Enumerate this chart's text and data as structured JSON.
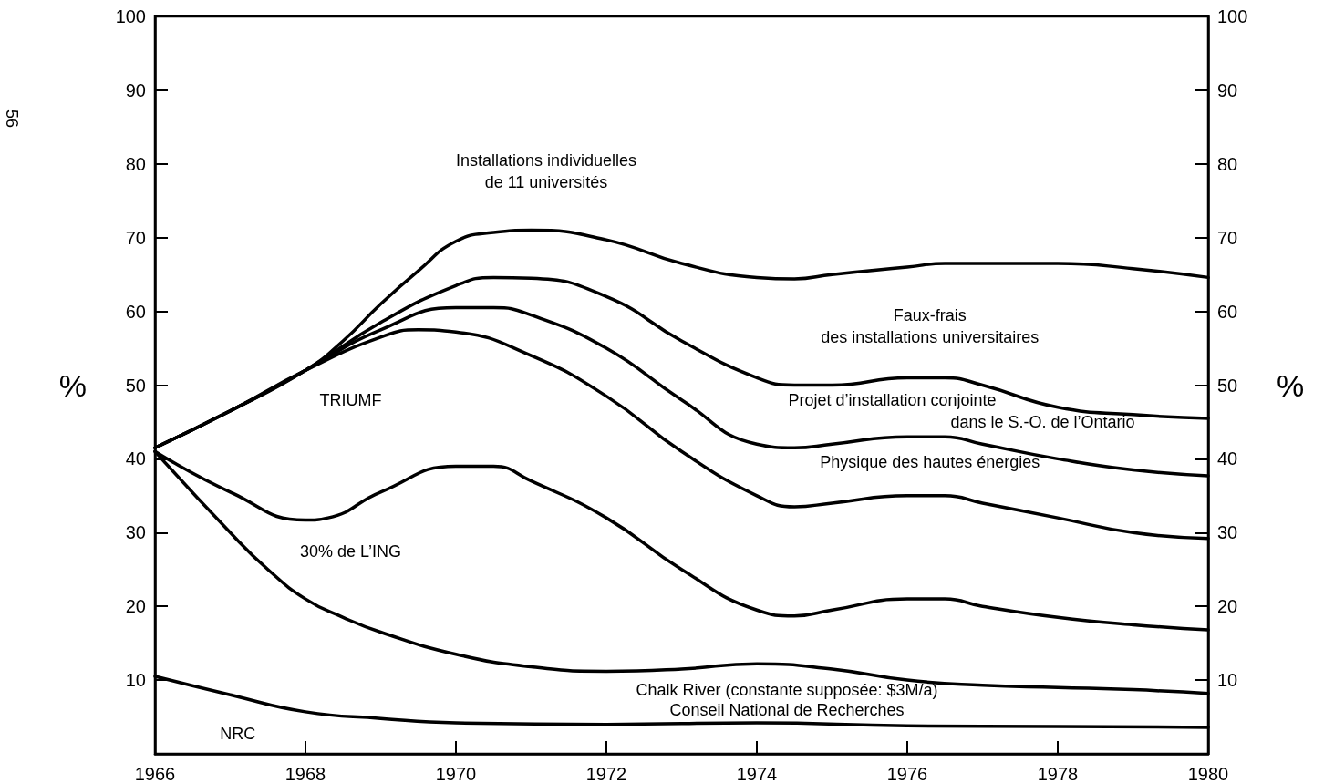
{
  "chart_data": {
    "type": "line",
    "ylabel": "%",
    "y2label": "%",
    "xlim": [
      1966,
      1980
    ],
    "xticks": [
      1966,
      1968,
      1970,
      1972,
      1974,
      1976,
      1978,
      1980
    ],
    "ylim": [
      0,
      100
    ],
    "yticks": [
      10,
      20,
      30,
      40,
      50,
      60,
      70,
      80,
      90,
      100
    ],
    "y2lim": [
      0,
      100
    ],
    "y2ticks": [
      10,
      20,
      30,
      40,
      50,
      60,
      70,
      80,
      90,
      100
    ],
    "grid": false,
    "legend": false,
    "marker": "none",
    "line_style": "solid",
    "series": [
      {
        "color": "#000000",
        "x": [
          1966,
          1967,
          1968,
          1968.5,
          1969,
          1969.5,
          1970,
          1970.5,
          1971,
          1972,
          1973,
          1974,
          1974.5,
          1975,
          1976,
          1976.5,
          1978,
          1979,
          1980
        ],
        "values": [
          41.5,
          46.5,
          52,
          56,
          61,
          65.5,
          69.5,
          70.7,
          71,
          69.7,
          66.5,
          64.6,
          64.4,
          65,
          66,
          66.5,
          66.5,
          65.8,
          64.6
        ]
      },
      {
        "color": "#000000",
        "x": [
          1966,
          1967,
          1968,
          1969,
          1970,
          1970.5,
          1971,
          1972,
          1973,
          1974,
          1974.5,
          1975,
          1976,
          1976.5,
          1977,
          1978,
          1979,
          1980
        ],
        "values": [
          41.5,
          46.5,
          52,
          58.5,
          63.5,
          64.6,
          64.5,
          62,
          56,
          51,
          50,
          50,
          51,
          51,
          50,
          47,
          46,
          45.5
        ]
      },
      {
        "color": "#000000",
        "x": [
          1966,
          1967,
          1968,
          1969,
          1970,
          1970.5,
          1971,
          1972,
          1973,
          1974,
          1974.5,
          1975,
          1976,
          1976.5,
          1977,
          1978,
          1979,
          1980
        ],
        "values": [
          41.5,
          46.5,
          52,
          57.5,
          60.5,
          60.5,
          59.5,
          55,
          48,
          42,
          41.5,
          42,
          43,
          43,
          42,
          40,
          38.5,
          37.7
        ]
      },
      {
        "color": "#000000",
        "x": [
          1966,
          1967,
          1968,
          1969,
          1969.5,
          1970,
          1971,
          1972,
          1973,
          1974,
          1974.5,
          1975,
          1976,
          1976.5,
          1977,
          1978,
          1979,
          1980
        ],
        "values": [
          41.5,
          46.5,
          52,
          56.5,
          57.5,
          57.2,
          54,
          48.5,
          41,
          35,
          33.5,
          34,
          35,
          35,
          34,
          32,
          30,
          29.2
        ]
      },
      {
        "color": "#000000",
        "x": [
          1966,
          1967,
          1968,
          1968.3,
          1969,
          1970,
          1970.5,
          1971,
          1972,
          1973,
          1974,
          1974.5,
          1975,
          1976,
          1976.5,
          1977,
          1978,
          1979,
          1980
        ],
        "values": [
          41,
          35.5,
          31.7,
          32,
          35.5,
          39,
          39,
          37,
          32,
          25,
          19.5,
          18.7,
          19.5,
          21,
          21,
          20,
          18.5,
          17.5,
          16.8
        ]
      },
      {
        "color": "#000000",
        "x": [
          1966,
          1967,
          1967.5,
          1968,
          1968.5,
          1969,
          1970,
          1971,
          1972,
          1973,
          1974,
          1975,
          1976,
          1977,
          1978,
          1979,
          1980
        ],
        "values": [
          41,
          30,
          25,
          21,
          18.5,
          16.5,
          13.5,
          11.8,
          11.2,
          11.5,
          12.2,
          11.5,
          10,
          9.3,
          9,
          8.7,
          8.2
        ]
      },
      {
        "color": "#000000",
        "x": [
          1966,
          1967,
          1968,
          1969,
          1970,
          1972,
          1974,
          1976,
          1978,
          1980
        ],
        "values": [
          10.5,
          8,
          5.7,
          4.8,
          4.2,
          4.0,
          4.2,
          3.8,
          3.7,
          3.6
        ]
      }
    ],
    "annotations": [
      "Installations individuelles",
      "de 11 universités",
      "Faux-frais",
      "des installations universitaires",
      "Projet d’installation conjointe",
      "dans le S.-O. de l’Ontario",
      "Physique des hautes énergies",
      "TRIUMF",
      "30% de L’ING",
      "Chalk River (constante supposée: $3M/a)",
      "Conseil National de Recherches",
      "NRC",
      "56"
    ]
  }
}
